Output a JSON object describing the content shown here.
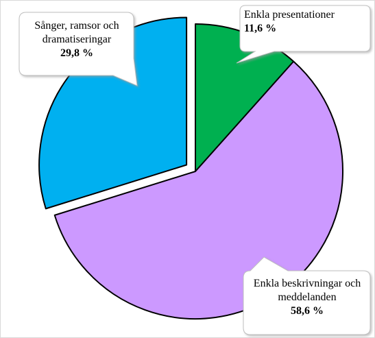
{
  "chart_data": {
    "type": "pie",
    "categories": [
      "Enkla presentationer",
      "Enkla beskrivningar och meddelanden",
      "Sånger, ramsor och dramatiseringar"
    ],
    "values": [
      11.6,
      58.6,
      29.8
    ],
    "value_labels": [
      "11,6 %",
      "58,6 %",
      "29,8 %"
    ],
    "colors": [
      "#00b050",
      "#cc99ff",
      "#00b0f0"
    ],
    "exploded": [
      false,
      false,
      true
    ]
  }
}
